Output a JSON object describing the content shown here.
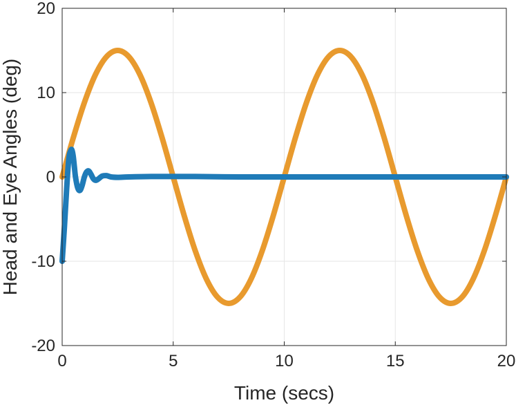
{
  "chart_data": {
    "type": "line",
    "title": "",
    "xlabel": "Time (secs)",
    "ylabel": "Head and Eye Angles (deg)",
    "xlim": [
      0,
      20
    ],
    "ylim": [
      -20,
      20
    ],
    "xticks": [
      0,
      5,
      10,
      15,
      20
    ],
    "xtick_labels": [
      "0",
      "5",
      "10",
      "15",
      "20"
    ],
    "yticks": [
      -20,
      -10,
      0,
      10,
      20
    ],
    "ytick_labels": [
      "-20",
      "-10",
      "0",
      "10",
      "20"
    ],
    "grid": true,
    "legend": "none",
    "series": [
      {
        "color": "#EDB120",
        "stroke_color": "#E89A2E",
        "x": [
          0,
          0.5,
          1,
          1.5,
          2,
          2.5,
          3,
          3.5,
          4,
          4.5,
          5,
          5.5,
          6,
          6.5,
          7,
          7.5,
          8,
          8.5,
          9,
          9.5,
          10,
          10.5,
          11,
          11.5,
          12,
          12.5,
          13,
          13.5,
          14,
          14.5,
          15,
          15.5,
          16,
          16.5,
          17,
          17.5,
          18,
          18.5,
          19,
          19.5,
          20
        ],
        "y": [
          0,
          4.64,
          8.82,
          12.14,
          14.27,
          15,
          14.27,
          12.14,
          8.82,
          4.64,
          0,
          -4.64,
          -8.82,
          -12.14,
          -14.27,
          -15,
          -14.27,
          -12.14,
          -8.82,
          -4.64,
          0,
          4.64,
          8.82,
          12.14,
          14.27,
          15,
          14.27,
          12.14,
          8.82,
          4.64,
          0,
          -4.64,
          -8.82,
          -12.14,
          -14.27,
          -15,
          -14.27,
          -12.14,
          -8.82,
          -4.64,
          0
        ]
      },
      {
        "color": "#0072BD",
        "stroke_color": "#1F7BB8",
        "x": [
          0,
          0.1,
          0.2,
          0.3,
          0.4,
          0.45,
          0.5,
          0.55,
          0.6,
          0.7,
          0.8,
          0.9,
          1.0,
          1.1,
          1.2,
          1.3,
          1.4,
          1.5,
          1.6,
          1.8,
          2.0,
          2.2,
          2.5,
          3,
          4,
          5,
          6,
          8,
          10,
          12,
          14,
          16,
          18,
          20
        ],
        "y": [
          -10,
          -6,
          -1.5,
          2.2,
          3.2,
          3.1,
          2.4,
          1.2,
          0,
          -1.3,
          -1.6,
          -1.0,
          0,
          0.6,
          0.7,
          0.3,
          -0.2,
          -0.4,
          -0.3,
          0.1,
          0.15,
          0,
          -0.05,
          0,
          0.05,
          0.05,
          0.05,
          0,
          0,
          0,
          0,
          0,
          0,
          0
        ]
      }
    ]
  }
}
